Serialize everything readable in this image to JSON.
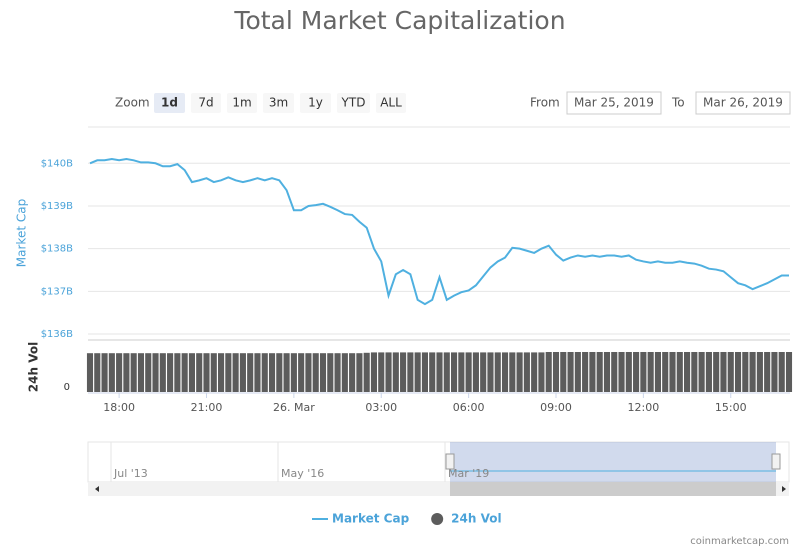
{
  "chart_data": {
    "type": "line",
    "title": "Total Market Capitalization",
    "y_label": "Market Cap",
    "y2_label": "24h Vol",
    "categories": [
      null,
      null,
      null,
      null,
      "18:00",
      null,
      null,
      null,
      null,
      null,
      null,
      null,
      null,
      null,
      null,
      null,
      "21:00",
      null,
      null,
      null,
      null,
      null,
      null,
      null,
      null,
      null,
      null,
      null,
      "26. Mar",
      null,
      null,
      null,
      null,
      null,
      null,
      null,
      null,
      null,
      null,
      null,
      "03:00",
      null,
      null,
      null,
      null,
      null,
      null,
      null,
      null,
      null,
      null,
      null,
      "06:00",
      null,
      null,
      null,
      null,
      null,
      null,
      null,
      null,
      null,
      null,
      null,
      "09:00",
      null,
      null,
      null,
      null,
      null,
      null,
      null,
      null,
      null,
      null,
      null,
      "12:00",
      null,
      null,
      null,
      null,
      null,
      null,
      null,
      null,
      null,
      null,
      null,
      "15:00",
      null,
      null,
      null,
      null,
      null,
      null,
      null,
      null
    ],
    "series": [
      {
        "name": "Market Cap",
        "color": "#4fb0e0",
        "values": [
          140000000000.0,
          140070000000.0,
          140070000000.0,
          140100000000.0,
          140070000000.0,
          140100000000.0,
          140070000000.0,
          140020000000.0,
          140020000000.0,
          140000000000.0,
          139930000000.0,
          139930000000.0,
          139980000000.0,
          139840000000.0,
          139560000000.0,
          139600000000.0,
          139650000000.0,
          139560000000.0,
          139600000000.0,
          139670000000.0,
          139600000000.0,
          139560000000.0,
          139600000000.0,
          139650000000.0,
          139600000000.0,
          139650000000.0,
          139600000000.0,
          139370000000.0,
          138900000000.0,
          138900000000.0,
          139000000000.0,
          139020000000.0,
          139050000000.0,
          138980000000.0,
          138900000000.0,
          138810000000.0,
          138790000000.0,
          138630000000.0,
          138490000000.0,
          138000000000.0,
          137700000000.0,
          136900000000.0,
          137400000000.0,
          137500000000.0,
          137400000000.0,
          136800000000.0,
          136700000000.0,
          136800000000.0,
          137330000000.0,
          136800000000.0,
          136900000000.0,
          136980000000.0,
          137020000000.0,
          137140000000.0,
          137350000000.0,
          137560000000.0,
          137700000000.0,
          137790000000.0,
          138020000000.0,
          138000000000.0,
          137950000000.0,
          137900000000.0,
          138000000000.0,
          138070000000.0,
          137860000000.0,
          137720000000.0,
          137790000000.0,
          137840000000.0,
          137810000000.0,
          137840000000.0,
          137810000000.0,
          137840000000.0,
          137840000000.0,
          137810000000.0,
          137840000000.0,
          137740000000.0,
          137700000000.0,
          137670000000.0,
          137700000000.0,
          137670000000.0,
          137670000000.0,
          137700000000.0,
          137670000000.0,
          137650000000.0,
          137600000000.0,
          137530000000.0,
          137510000000.0,
          137470000000.0,
          137330000000.0,
          137190000000.0,
          137140000000.0,
          137050000000.0,
          137120000000.0,
          137190000000.0,
          137280000000.0,
          137370000000.0,
          137370000000.0
        ]
      },
      {
        "name": "24h Vol",
        "color": "#5c5c5c",
        "axis": "y2",
        "values": [
          48500000000.0,
          48500000000.0,
          48500000000.0,
          48500000000.0,
          48500000000.0,
          48500000000.0,
          48500000000.0,
          48500000000.0,
          48500000000.0,
          48500000000.0,
          48500000000.0,
          48500000000.0,
          48500000000.0,
          48500000000.0,
          48500000000.0,
          48500000000.0,
          48500000000.0,
          48500000000.0,
          48500000000.0,
          48500000000.0,
          48500000000.0,
          48500000000.0,
          48500000000.0,
          48500000000.0,
          48500000000.0,
          48500000000.0,
          48500000000.0,
          48500000000.0,
          48500000000.0,
          48500000000.0,
          48500000000.0,
          48500000000.0,
          48500000000.0,
          48500000000.0,
          48500000000.0,
          48500000000.0,
          48500000000.0,
          48500000000.0,
          49000000000.0,
          49500000000.0,
          49500000000.0,
          49500000000.0,
          49500000000.0,
          49500000000.0,
          49500000000.0,
          49500000000.0,
          49500000000.0,
          49500000000.0,
          49500000000.0,
          49500000000.0,
          49500000000.0,
          49500000000.0,
          49500000000.0,
          49500000000.0,
          49500000000.0,
          49500000000.0,
          49500000000.0,
          49500000000.0,
          49500000000.0,
          49500000000.0,
          49500000000.0,
          49500000000.0,
          49500000000.0,
          50000000000.0,
          50000000000.0,
          50000000000.0,
          50000000000.0,
          50000000000.0,
          50000000000.0,
          50000000000.0,
          50000000000.0,
          50000000000.0,
          50000000000.0,
          50000000000.0,
          50000000000.0,
          50000000000.0,
          50000000000.0,
          50000000000.0,
          50000000000.0,
          50000000000.0,
          50000000000.0,
          50000000000.0,
          50000000000.0,
          50000000000.0,
          50000000000.0,
          50000000000.0,
          50000000000.0,
          50000000000.0,
          50000000000.0,
          50000000000.0,
          50000000000.0,
          50000000000.0,
          50000000000.0,
          50000000000.0,
          50000000000.0,
          50000000000.0,
          50000000000.0
        ]
      }
    ],
    "ylim": [
      136000000000.0,
      140850000000.0
    ],
    "yticks": [
      {
        "value": 136000000000,
        "label": "$136B"
      },
      {
        "value": 137000000000,
        "label": "$137B"
      },
      {
        "value": 138000000000,
        "label": "$138B"
      },
      {
        "value": 139000000000,
        "label": "$139B"
      },
      {
        "value": 140000000000,
        "label": "$140B"
      }
    ],
    "y2lim": [
      0,
      65000000000.0
    ],
    "y2ticks": [
      0
    ],
    "grid": true,
    "legend": "bottom"
  },
  "ui": {
    "zoom": {
      "label": "Zoom",
      "buttons": [
        "1d",
        "7d",
        "1m",
        "3m",
        "1y",
        "YTD",
        "ALL"
      ],
      "active": "1d"
    },
    "range": {
      "from_label": "From",
      "from": "Mar 25, 2019",
      "to_label": "To",
      "to": "Mar 26, 2019"
    },
    "navigator": {
      "labels": [
        "Jul '13",
        "May '16",
        "Mar '19"
      ]
    },
    "credit": "coinmarketcap.com"
  }
}
